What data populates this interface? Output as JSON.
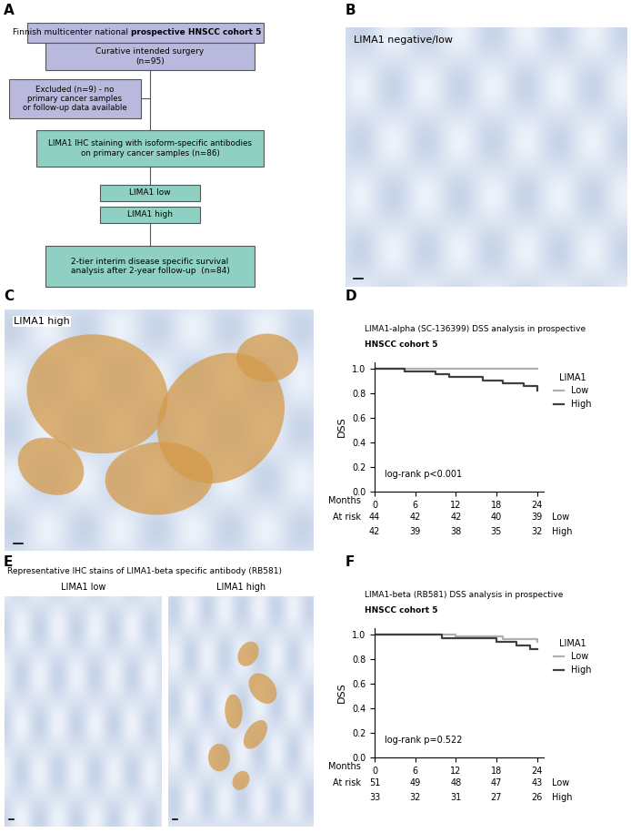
{
  "panel_labels": [
    "A",
    "B",
    "C",
    "D",
    "E",
    "F"
  ],
  "flowchart": {
    "title_normal": "Finnish multicenter national",
    "title_bold": "prospective HNSCC cohort 5",
    "nodes": [
      "Curative intended surgery\n(n=95)",
      "Excluded (n=9) - no\nprimary cancer samples\nor follow-up data available",
      "LIMA1 IHC staining with isoform-specific antibodies\non primary cancer samples (n=86)",
      "LIMA1 low",
      "LIMA1 high",
      "2-tier interim disease specific survival\nanalysis after 2-year follow-up  (n=84)"
    ]
  },
  "images": {
    "B": "LIMA1 negative/low",
    "C": "LIMA1 high",
    "E": {
      "title": "Representative IHC stains of LIMA1-beta specific antibody (RB581)",
      "left": "LIMA1 low",
      "right": "LIMA1 high"
    }
  },
  "chart_data": [
    {
      "type": "line",
      "title": "LIMA1-alpha (SC-136399) DSS analysis in prospective",
      "subtitle": "HNSCC cohort 5",
      "xlabel": "Months",
      "ylabel": "DSS",
      "xlim": [
        0,
        25
      ],
      "xticks": [
        0,
        6,
        12,
        18,
        24
      ],
      "ylim": [
        0,
        1.05
      ],
      "yticks": [
        {
          "value": 0,
          "label": "0.0"
        },
        {
          "value": 0.2,
          "label": "0.2"
        },
        {
          "value": 0.4,
          "label": "0.4"
        },
        {
          "value": 0.6,
          "label": "0.6"
        },
        {
          "value": 0.8,
          "label": "0.8"
        },
        {
          "value": 1.0,
          "label": "1.0"
        }
      ],
      "line_style": "steps",
      "legend": "upper left",
      "legend_title": "LIMA1",
      "annotation": "log-rank p<0.001",
      "series": [
        {
          "name": "Low",
          "color": "#b0b0b0",
          "x": [
            0,
            24
          ],
          "values": [
            1.0,
            1.0
          ]
        },
        {
          "name": "High",
          "color": "#404040",
          "x": [
            0,
            4.5,
            9,
            11,
            16,
            19,
            22,
            24
          ],
          "values": [
            1.0,
            0.976,
            0.952,
            0.928,
            0.905,
            0.88,
            0.857,
            0.82
          ]
        }
      ],
      "at_risk": {
        "label": "At risk",
        "times": [
          0,
          6,
          12,
          18,
          24
        ],
        "rows": [
          {
            "name": "Low",
            "values": [
              44,
              42,
              42,
              40,
              39
            ]
          },
          {
            "name": "High",
            "values": [
              42,
              39,
              38,
              35,
              32
            ]
          }
        ]
      }
    },
    {
      "type": "line",
      "title": "LIMA1-beta (RB581) DSS analysis in prospective",
      "subtitle": "HNSCC cohort 5",
      "xlabel": "Months",
      "ylabel": "DSS",
      "xlim": [
        0,
        25
      ],
      "xticks": [
        0,
        6,
        12,
        18,
        24
      ],
      "ylim": [
        0,
        1.05
      ],
      "yticks": [
        {
          "value": 0,
          "label": "0.0"
        },
        {
          "value": 0.2,
          "label": "0.2"
        },
        {
          "value": 0.4,
          "label": "0.4"
        },
        {
          "value": 0.6,
          "label": "0.6"
        },
        {
          "value": 0.8,
          "label": "0.8"
        },
        {
          "value": 1.0,
          "label": "1.0"
        }
      ],
      "line_style": "steps",
      "legend": "upper left",
      "legend_title": "LIMA1",
      "annotation": "log-rank p=0.522",
      "series": [
        {
          "name": "Low",
          "color": "#b0b0b0",
          "x": [
            0,
            12,
            19,
            24
          ],
          "values": [
            1.0,
            0.98,
            0.96,
            0.94
          ]
        },
        {
          "name": "High",
          "color": "#404040",
          "x": [
            0,
            10,
            18,
            21,
            23,
            24
          ],
          "values": [
            1.0,
            0.97,
            0.94,
            0.91,
            0.88,
            0.88
          ]
        }
      ],
      "at_risk": {
        "label": "At risk",
        "times": [
          0,
          6,
          12,
          18,
          24
        ],
        "rows": [
          {
            "name": "Low",
            "values": [
              51,
              49,
              48,
              47,
              43
            ]
          },
          {
            "name": "High",
            "values": [
              33,
              32,
              31,
              27,
              26
            ]
          }
        ]
      }
    }
  ]
}
